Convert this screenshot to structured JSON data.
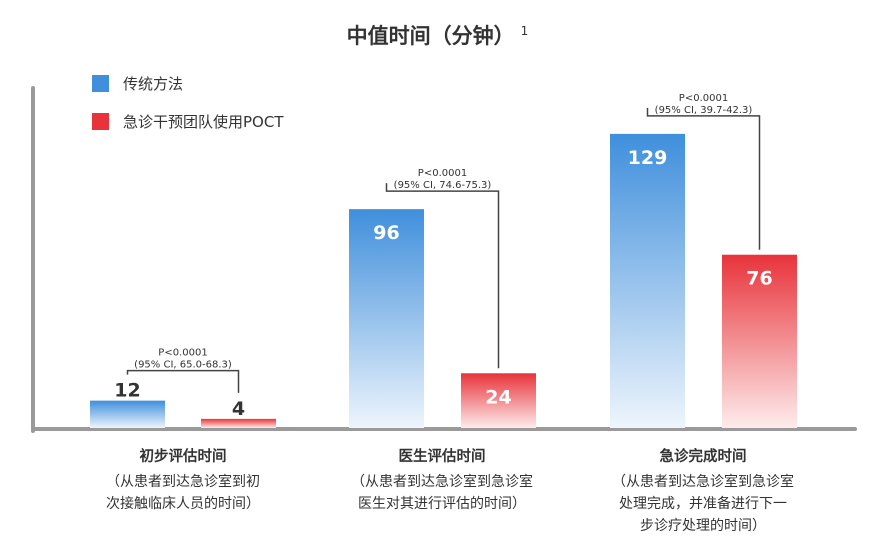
{
  "title": "中值时间（分钟）",
  "title_footnote": "1",
  "legend": [
    {
      "label": "传统方法",
      "color": "#3f8fdc"
    },
    {
      "label": "急诊干预团队使用POCT",
      "color": "#e8333a"
    }
  ],
  "chart_data": {
    "type": "bar",
    "title": "中值时间（分钟）",
    "ylim": [
      0,
      140
    ],
    "series": [
      {
        "name": "传统方法",
        "values": [
          12,
          96,
          129
        ],
        "color": "#3f8fdc"
      },
      {
        "name": "急诊干预团队使用POCT",
        "values": [
          4,
          24,
          76
        ],
        "color": "#e8333a"
      }
    ],
    "categories": [
      {
        "label": "初步评估时间",
        "desc": [
          "（从患者到达急诊室到初",
          "次接触临床人员的时间）"
        ],
        "p": "P<0.0001",
        "ci": "(95% CI, 65.0-68.3)"
      },
      {
        "label": "医生评估时间",
        "desc": [
          "（从患者到达急诊室到急诊室",
          "医生对其进行评估的时间）"
        ],
        "p": "P<0.0001",
        "ci": "(95% CI, 74.6-75.3)"
      },
      {
        "label": "急诊完成时间",
        "desc": [
          "（从患者到达急诊室到急诊室",
          "处理完成，并准备进行下一",
          "步诊疗处理的时间）"
        ],
        "p": "P<0.0001",
        "ci": "(95% CI, 39.7-42.3)"
      }
    ]
  }
}
